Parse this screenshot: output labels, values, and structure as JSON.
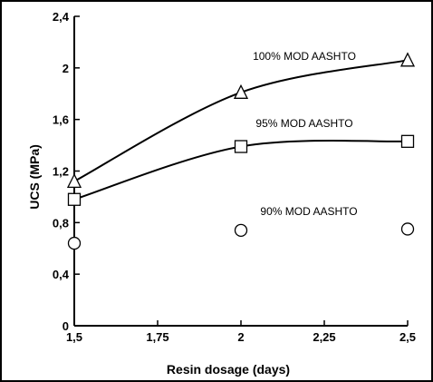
{
  "chart_data": {
    "type": "line",
    "title": "",
    "xlabel": "Resin dosage (days)",
    "ylabel": "UCS (MPa)",
    "xlim": [
      1.5,
      2.5
    ],
    "ylim": [
      0,
      2.4
    ],
    "x_ticks": [
      "1,5",
      "1,75",
      "2",
      "2,25",
      "2,5"
    ],
    "y_ticks": [
      "0",
      "0,4",
      "0,8",
      "1,2",
      "1,6",
      "2",
      "2,4"
    ],
    "x": [
      1.5,
      2,
      2.5
    ],
    "grid": false,
    "series": [
      {
        "name": "100% MOD AASHTO",
        "marker": "triangle",
        "connected": true,
        "values": [
          1.12,
          1.81,
          2.06
        ]
      },
      {
        "name": "95% MOD AASHTO",
        "marker": "square",
        "connected": true,
        "values": [
          0.98,
          1.39,
          1.43
        ]
      },
      {
        "name": "90% MOD AASHTO",
        "marker": "circle",
        "connected": false,
        "values": [
          0.64,
          0.74,
          0.75
        ]
      }
    ]
  }
}
